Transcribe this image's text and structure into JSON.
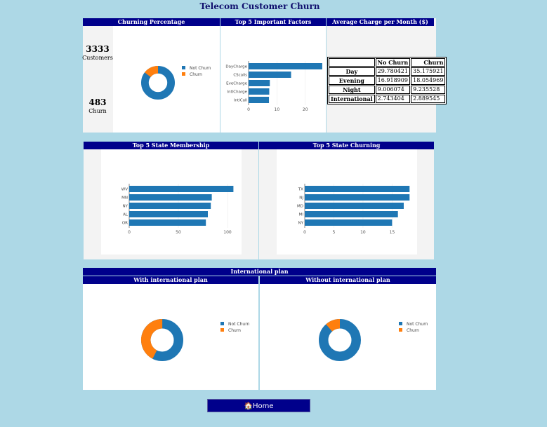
{
  "page_title": "Telecom Customer Churn",
  "home_button": {
    "icon": "🏠",
    "label": "Home"
  },
  "stats": {
    "customers_value": "3333",
    "customers_label": "Customers",
    "churn_value": "483",
    "churn_label": "Churn"
  },
  "colors": {
    "blue": "#1f77b4",
    "orange": "#ff7f0e",
    "header": "#00008b"
  },
  "charge_table": {
    "title": "Average Charge per Month ($)",
    "columns": [
      "",
      "No Churn",
      "Churn"
    ],
    "rows": [
      {
        "label": "Day",
        "no_churn": "29.780421",
        "churn": "35.175921"
      },
      {
        "label": "Evening",
        "no_churn": "16.918909",
        "churn": "18.054969"
      },
      {
        "label": "Night",
        "no_churn": "9.006074",
        "churn": "9.235528"
      },
      {
        "label": "International",
        "no_churn": "2.743404",
        "churn": "2.889545"
      }
    ]
  },
  "international_section_title": "International plan",
  "chart_data": [
    {
      "id": "churn_pct",
      "type": "pie",
      "title": "Churning Percentage",
      "labels": [
        "Not Churn",
        "Churn"
      ],
      "values": [
        2850,
        483
      ],
      "hole": 0.55,
      "legend": [
        "Not Churn",
        "Churn"
      ]
    },
    {
      "id": "factors",
      "type": "bar",
      "orientation": "horizontal",
      "title": "Top 5 Important Factors",
      "categories": [
        "DayCharge",
        "CScalls",
        "EveCharge",
        "IntlCharge",
        "IntlCall"
      ],
      "values": [
        26,
        15,
        7.5,
        7.3,
        7.2
      ],
      "xlim": [
        0,
        28
      ],
      "xticks": [
        0,
        10,
        20
      ]
    },
    {
      "id": "state_membership",
      "type": "bar",
      "orientation": "horizontal",
      "title": "Top 5 State Membership",
      "categories": [
        "WV",
        "MN",
        "NY",
        "AL",
        "OR"
      ],
      "values": [
        106,
        84,
        83,
        80,
        78
      ],
      "xlim": [
        0,
        125
      ],
      "xticks": [
        0,
        50,
        100
      ]
    },
    {
      "id": "state_churning",
      "type": "bar",
      "orientation": "horizontal",
      "title": "Top 5 State Churning",
      "categories": [
        "TX",
        "NJ",
        "MD",
        "MI",
        "NY"
      ],
      "values": [
        18,
        18,
        17,
        16,
        15
      ],
      "xlim": [
        0,
        20.5
      ],
      "xticks": [
        0,
        5,
        10,
        15
      ]
    },
    {
      "id": "with_intl",
      "type": "pie",
      "title": "With international plan",
      "labels": [
        "Not Churn",
        "Churn"
      ],
      "values": [
        186,
        137
      ],
      "hole": 0.55,
      "legend": [
        "Not Churn",
        "Churn"
      ]
    },
    {
      "id": "without_intl",
      "type": "pie",
      "title": "Without international plan",
      "labels": [
        "Not Churn",
        "Churn"
      ],
      "values": [
        2664,
        346
      ],
      "hole": 0.55,
      "legend": [
        "Not Churn",
        "Churn"
      ]
    }
  ]
}
